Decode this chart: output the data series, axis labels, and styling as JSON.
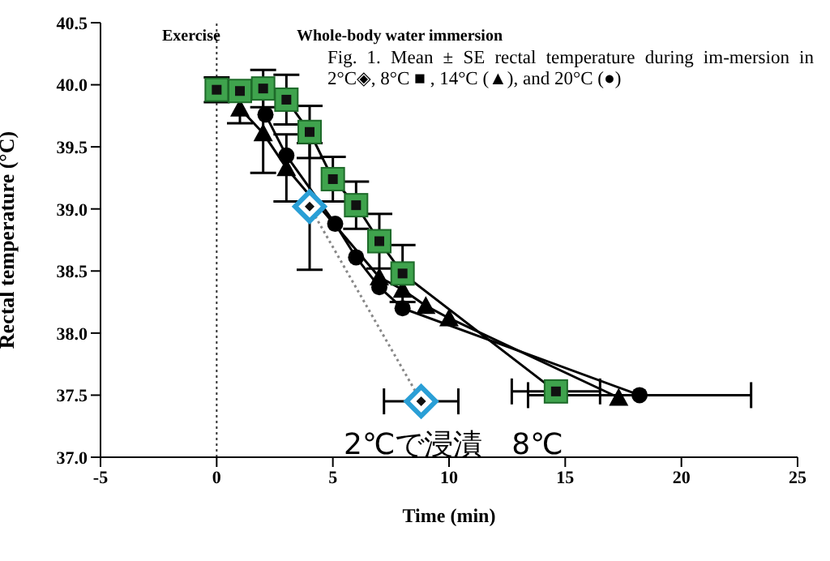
{
  "chart_data": {
    "type": "line",
    "xlabel": "Time (min)",
    "ylabel": "Rectal temperature (°C)",
    "xlim": [
      -5,
      25
    ],
    "xticks": [
      -5,
      0,
      5,
      10,
      15,
      20,
      25
    ],
    "ylim": [
      37,
      40.5
    ],
    "yticks": [
      {
        "value": 37,
        "label": "37.0"
      },
      {
        "value": 37.5,
        "label": "37.5"
      },
      {
        "value": 38,
        "label": "38.0"
      },
      {
        "value": 38.5,
        "label": "38.5"
      },
      {
        "value": 39,
        "label": "39.0"
      },
      {
        "value": 39.5,
        "label": "39.5"
      },
      {
        "value": 40,
        "label": "40.0"
      },
      {
        "value": 40.5,
        "label": "40.5"
      }
    ],
    "ref_lines": [
      {
        "axis": "x",
        "value": 0,
        "line_style": "dotted",
        "color": "#333333"
      }
    ],
    "annotations": [
      "Exercise",
      "Whole-body water immersion",
      "Fig. 1. Mean ± SE rectal temperature during im-mersion in 2°C◈, 8°C ■ , 14°C (▲), and 20°C (●)",
      "2℃で浸漬　8℃"
    ],
    "series": [
      {
        "color": "#000000",
        "marker": "triangle",
        "line_style": "solid",
        "x": [
          1,
          2,
          3,
          7,
          8,
          9,
          10,
          17.3
        ],
        "values": [
          39.81,
          39.61,
          39.33,
          38.45,
          38.35,
          38.22,
          38.12,
          37.48
        ],
        "errors": [
          0.12,
          0.32,
          0.27,
          null,
          null,
          null,
          null,
          null
        ]
      },
      {
        "color": "#000000",
        "marker": "circle",
        "line_style": "solid",
        "x": [
          2.1,
          3,
          5.1,
          6,
          7,
          8,
          18.2
        ],
        "values": [
          39.76,
          39.43,
          38.88,
          38.61,
          38.37,
          38.2,
          37.5
        ],
        "xerrors": [
          null,
          null,
          null,
          null,
          null,
          null,
          4.8
        ]
      },
      {
        "color": "#3fa34d",
        "marker": "square",
        "line_style": "solid",
        "x": [
          0,
          1,
          2,
          3,
          4,
          5,
          6,
          7,
          8,
          14.6
        ],
        "values": [
          39.96,
          39.95,
          39.97,
          39.88,
          39.62,
          39.24,
          39.03,
          38.74,
          38.48,
          37.53
        ],
        "errors": [
          0.1,
          null,
          0.15,
          0.2,
          0.21,
          0.18,
          0.19,
          0.22,
          0.23,
          null
        ],
        "xerrors": [
          null,
          null,
          null,
          null,
          null,
          null,
          null,
          null,
          null,
          1.9
        ]
      },
      {
        "color": "#2a9fd6",
        "marker": "diamond",
        "line_style": "dotted",
        "x": [
          4,
          8.8
        ],
        "values": [
          39.02,
          37.45
        ],
        "errors": [
          0.51,
          null
        ],
        "xerrors": [
          null,
          1.6
        ]
      }
    ]
  }
}
